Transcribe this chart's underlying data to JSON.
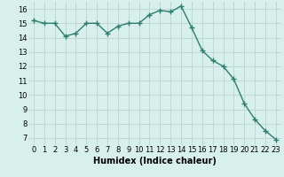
{
  "x": [
    0,
    1,
    2,
    3,
    4,
    5,
    6,
    7,
    8,
    9,
    10,
    11,
    12,
    13,
    14,
    15,
    16,
    17,
    18,
    19,
    20,
    21,
    22,
    23
  ],
  "y": [
    15.2,
    15.0,
    15.0,
    14.1,
    14.3,
    15.0,
    15.0,
    14.3,
    14.8,
    15.0,
    15.0,
    15.6,
    15.9,
    15.8,
    16.2,
    14.7,
    13.1,
    12.4,
    12.0,
    11.1,
    9.4,
    8.3,
    7.5,
    6.9
  ],
  "line_color": "#2e7d6e",
  "marker": "+",
  "markersize": 4,
  "linewidth": 1.0,
  "xlabel": "Humidex (Indice chaleur)",
  "xlim": [
    -0.5,
    23.5
  ],
  "ylim": [
    6.5,
    16.5
  ],
  "yticks": [
    7,
    8,
    9,
    10,
    11,
    12,
    13,
    14,
    15,
    16
  ],
  "xticks": [
    0,
    1,
    2,
    3,
    4,
    5,
    6,
    7,
    8,
    9,
    10,
    11,
    12,
    13,
    14,
    15,
    16,
    17,
    18,
    19,
    20,
    21,
    22,
    23
  ],
  "bg_color": "#d8f0ec",
  "grid_color": "#c0d8d4",
  "tick_fontsize": 6,
  "label_fontsize": 7
}
